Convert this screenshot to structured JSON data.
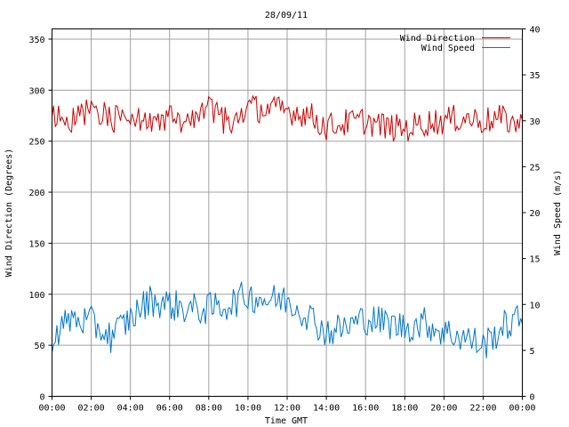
{
  "chart_data": {
    "type": "line",
    "title": "28/09/11",
    "xlabel": "Time GMT",
    "ylabel_left": "Wind Direction (Degrees)",
    "ylabel_right": "Wind Speed (m/s)",
    "x_ticks": [
      "00:00",
      "02:00",
      "04:00",
      "06:00",
      "08:00",
      "10:00",
      "12:00",
      "14:00",
      "16:00",
      "18:00",
      "20:00",
      "22:00",
      "00:00"
    ],
    "x_range_hours": [
      0,
      24
    ],
    "ylim_left": [
      0,
      360
    ],
    "y_ticks_left": [
      0,
      50,
      100,
      150,
      200,
      250,
      300,
      350
    ],
    "ylim_right": [
      0,
      40
    ],
    "y_ticks_right": [
      0,
      5,
      10,
      15,
      20,
      25,
      30,
      35,
      40
    ],
    "grid": true,
    "legend_position": "top-right",
    "series": [
      {
        "name": "Wind Direction",
        "axis": "left",
        "color": "#cc0000",
        "x": [
          0,
          1,
          2,
          3,
          4,
          5,
          6,
          7,
          8,
          9,
          10,
          11,
          12,
          13,
          14,
          15,
          16,
          17,
          18,
          19,
          20,
          21,
          22,
          23,
          24
        ],
        "values": [
          273,
          268,
          283,
          272,
          270,
          268,
          276,
          265,
          280,
          268,
          283,
          281,
          280,
          277,
          264,
          268,
          270,
          264,
          262,
          268,
          270,
          273,
          270,
          272,
          265
        ]
      },
      {
        "name": "Wind Speed",
        "axis": "right",
        "color": "#0077cc",
        "x": [
          0,
          1,
          2,
          3,
          4,
          5,
          6,
          7,
          8,
          9,
          10,
          11,
          12,
          13,
          14,
          15,
          16,
          17,
          18,
          19,
          20,
          21,
          22,
          23,
          24
        ],
        "values": [
          6.5,
          8.5,
          8.0,
          6.5,
          8.5,
          10.5,
          10.0,
          9.5,
          9.5,
          10.0,
          11.0,
          10.5,
          10.5,
          9.0,
          7.0,
          7.5,
          8.5,
          8.0,
          7.5,
          8.0,
          7.0,
          6.5,
          5.5,
          7.5,
          8.5
        ]
      }
    ]
  }
}
